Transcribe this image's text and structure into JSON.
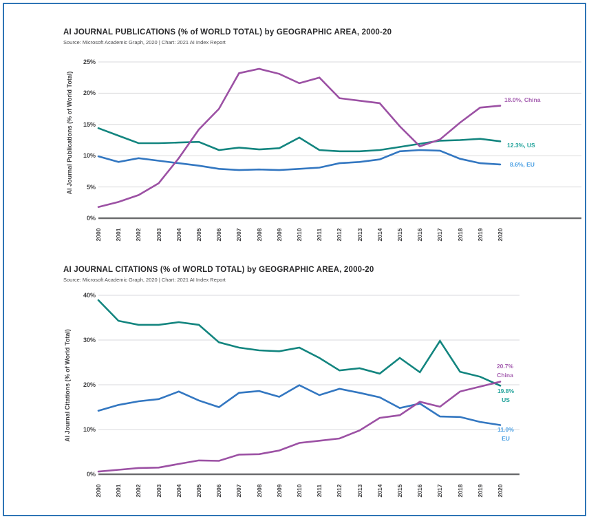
{
  "page": {
    "background": "#ffffff",
    "border_color": "#2e75b6"
  },
  "colors": {
    "gridline": "#dadadc",
    "baseline": "#6a6b6d",
    "title": "#2a2a2c",
    "source": "#4d4d4f"
  },
  "chart_data": [
    {
      "type": "line",
      "title": "AI JOURNAL PUBLICATIONS (% of WORLD TOTAL) by GEOGRAPHIC AREA, 2000-20",
      "source": "Source: Microsoft Academic Graph, 2020 | Chart: 2021 AI Index Report",
      "ylabel": "AI Journal Publications (% of World Total)",
      "xlabel": "",
      "x": [
        "2000",
        "2001",
        "2002",
        "2003",
        "2004",
        "2005",
        "2006",
        "2007",
        "2008",
        "2009",
        "2010",
        "2011",
        "2012",
        "2013",
        "2014",
        "2015",
        "2016",
        "2017",
        "2018",
        "2019",
        "2020"
      ],
      "ylim": [
        0,
        25
      ],
      "yticks": [
        0,
        5,
        10,
        15,
        20,
        25
      ],
      "ytick_labels": [
        "0%",
        "5%",
        "10%",
        "15%",
        "20%",
        "25%"
      ],
      "grid": true,
      "legend_position": "end-of-line labels at right",
      "series": [
        {
          "name": "China",
          "color": "#9c51a4",
          "label_color": "#a55fb0",
          "end_label_lines": [
            "18.0%, China"
          ],
          "values": [
            1.8,
            2.6,
            3.7,
            5.6,
            9.6,
            14.2,
            17.5,
            23.2,
            23.9,
            23.1,
            21.6,
            22.5,
            19.2,
            18.8,
            18.4,
            14.7,
            11.5,
            12.6,
            15.3,
            17.7,
            18.0
          ]
        },
        {
          "name": "US",
          "color": "#13857f",
          "label_color": "#22a39b",
          "end_label_lines": [
            "12.3%, US"
          ],
          "values": [
            14.4,
            13.2,
            12.0,
            12.0,
            12.1,
            12.2,
            10.9,
            11.3,
            11.0,
            11.2,
            12.9,
            10.9,
            10.7,
            10.7,
            10.9,
            11.4,
            11.9,
            12.4,
            12.5,
            12.7,
            12.3
          ]
        },
        {
          "name": "EU",
          "color": "#3377c1",
          "label_color": "#4a9fe3",
          "end_label_lines": [
            "8.6%, EU"
          ],
          "values": [
            9.9,
            9.0,
            9.6,
            9.2,
            8.8,
            8.4,
            7.9,
            7.7,
            7.8,
            7.7,
            7.9,
            8.1,
            8.8,
            9.0,
            9.4,
            10.7,
            10.9,
            10.8,
            9.5,
            8.8,
            8.6
          ]
        }
      ]
    },
    {
      "type": "line",
      "title": "AI JOURNAL CITATIONS (% of WORLD TOTAL) by GEOGRAPHIC AREA, 2000-20",
      "source": "Source: Microsoft Academic Graph, 2020 | Chart: 2021 AI Index Report",
      "ylabel": "AI Journal Citations (% of World Total)",
      "xlabel": "",
      "x": [
        "2000",
        "2001",
        "2002",
        "2003",
        "2004",
        "2005",
        "2006",
        "2007",
        "2008",
        "2009",
        "2010",
        "2011",
        "2012",
        "2013",
        "2014",
        "2015",
        "2016",
        "2017",
        "2018",
        "2019",
        "2020"
      ],
      "ylim": [
        0,
        40
      ],
      "yticks": [
        0,
        10,
        20,
        30,
        40
      ],
      "ytick_labels": [
        "0%",
        "10%",
        "20%",
        "30%",
        "40%"
      ],
      "grid": true,
      "legend_position": "end-of-line labels at right",
      "series": [
        {
          "name": "China",
          "color": "#9c51a4",
          "label_color": "#a55fb0",
          "end_label_lines": [
            "20.7%",
            "China"
          ],
          "values": [
            0.6,
            1.0,
            1.4,
            1.5,
            2.3,
            3.1,
            3.0,
            4.4,
            4.5,
            5.3,
            7.0,
            7.5,
            8.0,
            9.8,
            12.6,
            13.2,
            16.2,
            15.1,
            18.5,
            19.6,
            20.7
          ]
        },
        {
          "name": "US",
          "color": "#13857f",
          "label_color": "#22a39b",
          "end_label_lines": [
            "19.8%",
            "US"
          ],
          "values": [
            38.9,
            34.3,
            33.4,
            33.4,
            34.0,
            33.4,
            29.5,
            28.3,
            27.7,
            27.5,
            28.3,
            26.0,
            23.2,
            23.7,
            22.5,
            26.0,
            22.8,
            29.8,
            22.9,
            21.8,
            19.8
          ]
        },
        {
          "name": "EU",
          "color": "#3377c1",
          "label_color": "#4a9fe3",
          "end_label_lines": [
            "11.0%",
            "EU"
          ],
          "values": [
            14.2,
            15.5,
            16.3,
            16.8,
            18.5,
            16.5,
            15.0,
            18.2,
            18.6,
            17.3,
            19.9,
            17.7,
            19.1,
            18.2,
            17.2,
            14.8,
            15.8,
            12.9,
            12.8,
            11.7,
            11.0
          ]
        }
      ]
    }
  ]
}
